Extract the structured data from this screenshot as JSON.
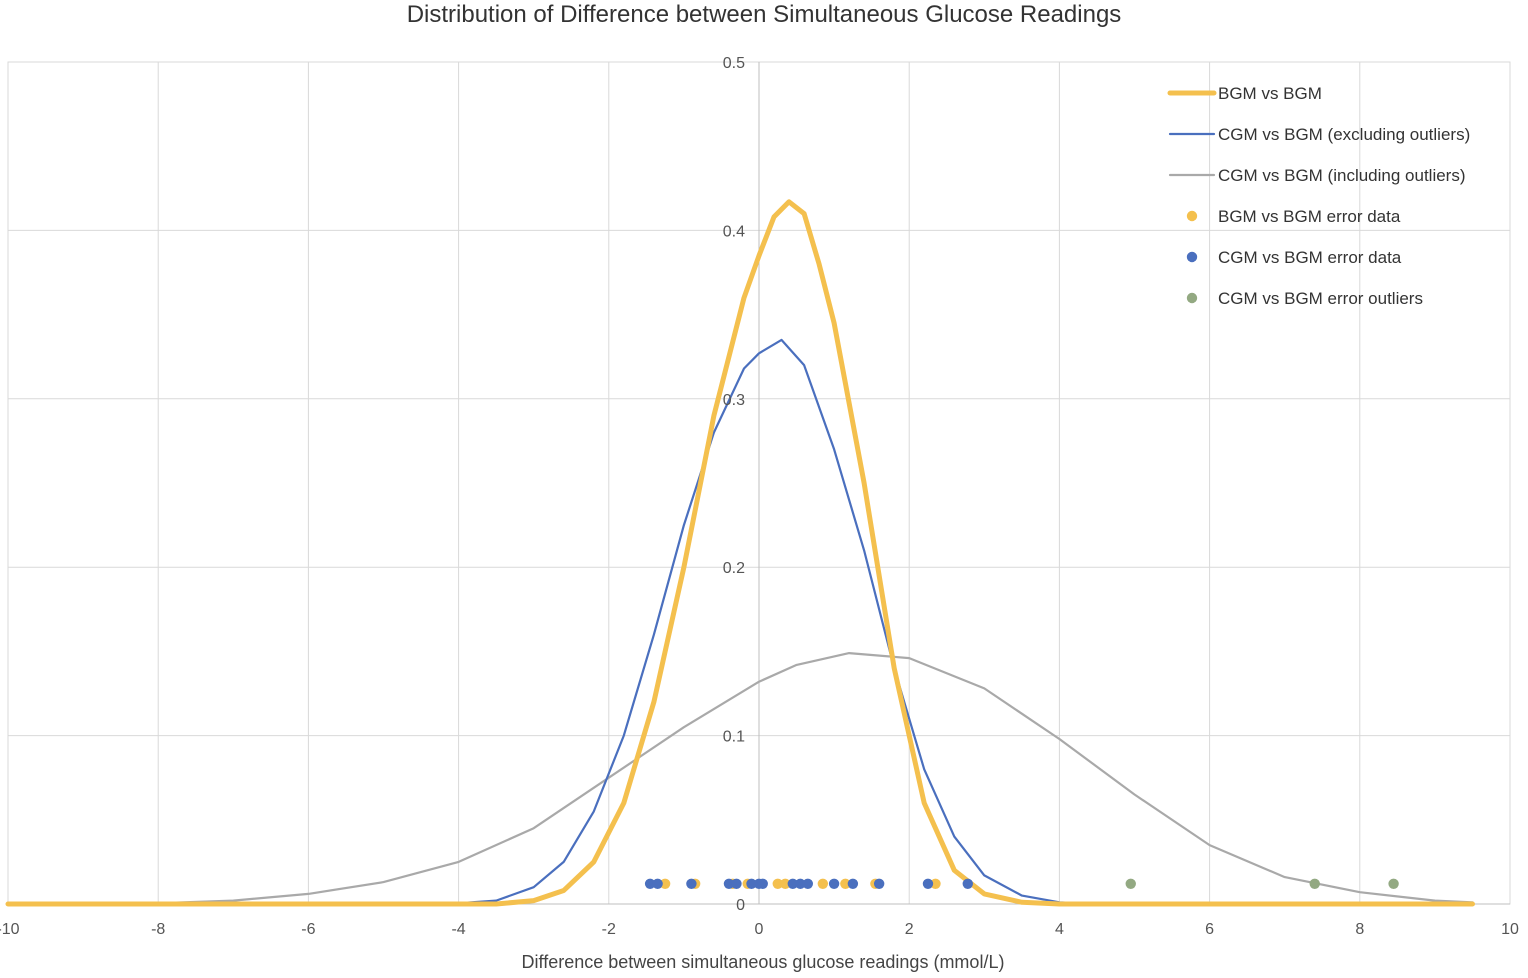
{
  "chart_data": {
    "type": "line",
    "title": "Distribution of Difference between Simultaneous Glucose Readings",
    "xlabel": "Difference between simultaneous glucose readings (mmol/L)",
    "ylabel": "",
    "xlim": [
      -10,
      10
    ],
    "ylim": [
      0,
      0.5
    ],
    "x_ticks": [
      "-10",
      "-8",
      "-6",
      "-4",
      "-2",
      "0",
      "2",
      "4",
      "6",
      "8",
      "10"
    ],
    "y_ticks": [
      "0",
      "0.1",
      "0.2",
      "0.3",
      "0.4",
      "0.5"
    ],
    "grid": true,
    "legend_position": "top-right",
    "series": [
      {
        "name": "BGM vs BGM",
        "kind": "line",
        "color": "#F4C04E",
        "x": [
          -10,
          -3.5,
          -3,
          -2.6,
          -2.2,
          -1.8,
          -1.4,
          -1,
          -0.6,
          -0.2,
          0,
          0.2,
          0.4,
          0.6,
          0.8,
          1.0,
          1.4,
          1.8,
          2.2,
          2.6,
          3.0,
          3.5,
          4.0,
          9.5
        ],
        "y": [
          0,
          0.0,
          0.002,
          0.008,
          0.025,
          0.06,
          0.12,
          0.2,
          0.29,
          0.36,
          0.385,
          0.408,
          0.417,
          0.41,
          0.38,
          0.345,
          0.25,
          0.14,
          0.06,
          0.02,
          0.006,
          0.001,
          0,
          0
        ]
      },
      {
        "name": "CGM vs BGM (excluding outliers)",
        "kind": "line",
        "color": "#4A6FBE",
        "x": [
          -10,
          -4,
          -3.5,
          -3,
          -2.6,
          -2.2,
          -1.8,
          -1.4,
          -1.0,
          -0.6,
          -0.2,
          0,
          0.3,
          0.6,
          1.0,
          1.4,
          1.8,
          2.2,
          2.6,
          3.0,
          3.5,
          4.0,
          4.5,
          9.5
        ],
        "y": [
          0,
          0.0005,
          0.002,
          0.01,
          0.025,
          0.055,
          0.1,
          0.16,
          0.225,
          0.28,
          0.318,
          0.327,
          0.335,
          0.32,
          0.27,
          0.21,
          0.14,
          0.08,
          0.04,
          0.017,
          0.005,
          0.001,
          0,
          0
        ]
      },
      {
        "name": "CGM vs BGM (including outliers)",
        "kind": "line",
        "color": "#A9A9A9",
        "x": [
          -10,
          -8,
          -7,
          -6,
          -5,
          -4,
          -3,
          -2,
          -1,
          0,
          0.5,
          1.2,
          2,
          3,
          4,
          5,
          6,
          7,
          8,
          9,
          9.5
        ],
        "y": [
          0,
          0.0005,
          0.002,
          0.006,
          0.013,
          0.025,
          0.045,
          0.075,
          0.105,
          0.132,
          0.142,
          0.149,
          0.146,
          0.128,
          0.098,
          0.065,
          0.035,
          0.016,
          0.007,
          0.002,
          0.001
        ]
      },
      {
        "name": "BGM vs BGM error data",
        "kind": "scatter",
        "color": "#F4C04E",
        "x": [
          -1.25,
          -0.85,
          -0.35,
          -0.15,
          0.25,
          0.35,
          0.85,
          1.15,
          1.55,
          2.35
        ],
        "y": [
          0.012,
          0.012,
          0.012,
          0.012,
          0.012,
          0.012,
          0.012,
          0.012,
          0.012,
          0.012
        ]
      },
      {
        "name": "CGM vs BGM error data",
        "kind": "scatter",
        "color": "#4A6FBE",
        "x": [
          -1.45,
          -1.35,
          -0.9,
          -0.4,
          -0.3,
          -0.1,
          0.0,
          0.05,
          0.45,
          0.55,
          0.65,
          1.0,
          1.25,
          1.6,
          2.25,
          2.78
        ],
        "y": [
          0.012,
          0.012,
          0.012,
          0.012,
          0.012,
          0.012,
          0.012,
          0.012,
          0.012,
          0.012,
          0.012,
          0.012,
          0.012,
          0.012,
          0.012,
          0.012
        ]
      },
      {
        "name": "CGM vs BGM error outliers",
        "kind": "scatter",
        "color": "#93A982",
        "x": [
          4.95,
          7.4,
          8.45
        ],
        "y": [
          0.012,
          0.012,
          0.012
        ]
      }
    ]
  }
}
